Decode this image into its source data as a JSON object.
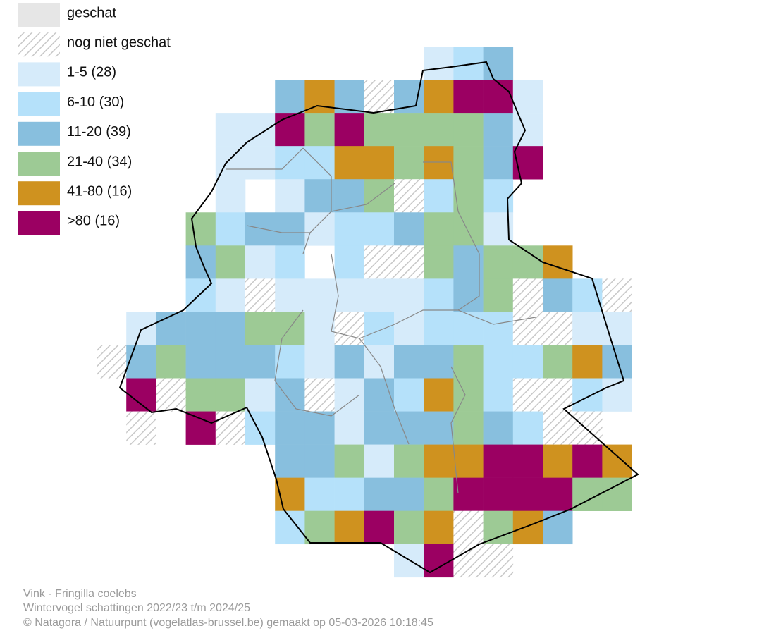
{
  "legend": [
    {
      "label": "geschat",
      "color": "#e6e6e6"
    },
    {
      "label": "nog niet geschat",
      "color": "hatch"
    },
    {
      "label": "1-5 (28)",
      "color": "#d6ebfa"
    },
    {
      "label": "6-10 (30)",
      "color": "#b5e1fa"
    },
    {
      "label": "11-20 (39)",
      "color": "#88bfde"
    },
    {
      "label": "21-40 (34)",
      "color": "#9dca95"
    },
    {
      "label": "41-80 (16)",
      "color": "#cf921f"
    },
    {
      "label": ">80 (16)",
      "color": "#9b0062"
    }
  ],
  "footer": {
    "species": "Vink - Fringilla coelebs",
    "period": "Wintervogel schattingen 2022/23 t/m 2024/25",
    "credit": "© Natagora / Natuurpunt (vogelatlas-brussel.be) gemaakt op 05-03-2026 10:18:45"
  }
}
